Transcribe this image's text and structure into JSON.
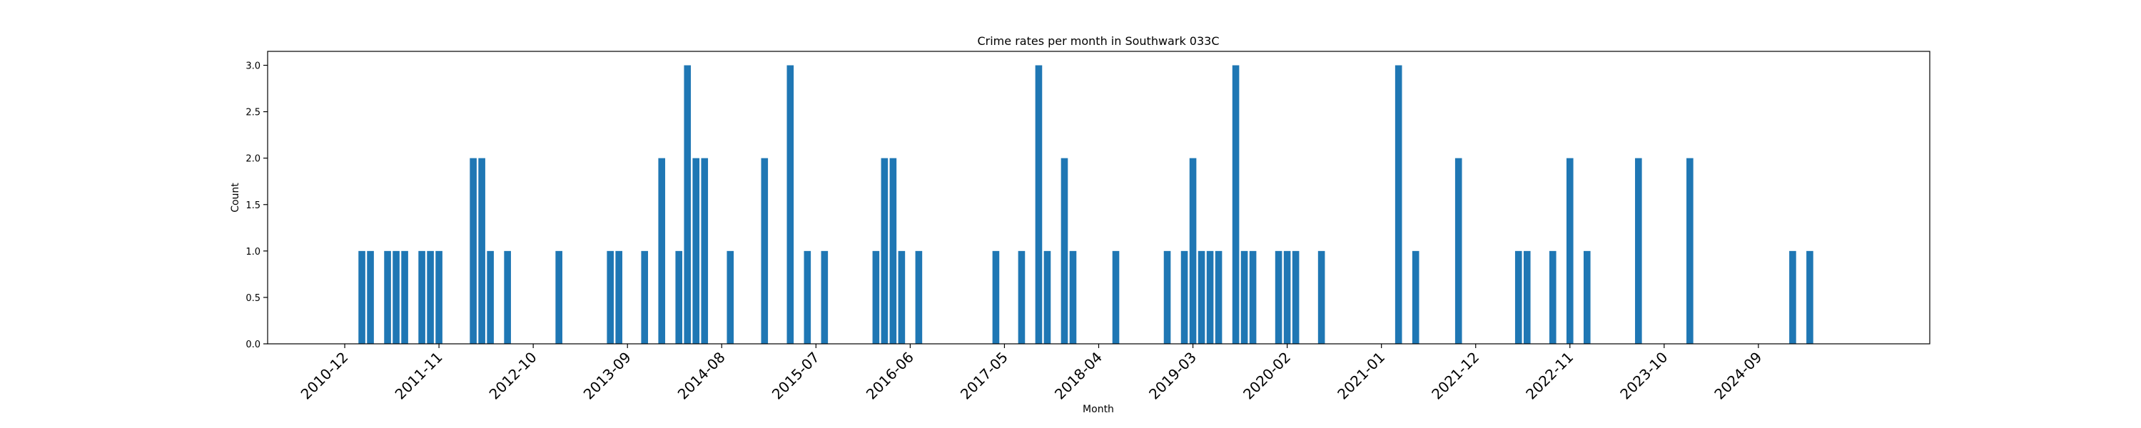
{
  "chart_data": {
    "type": "bar",
    "title": "Crime rates per month in Southwark 033C",
    "xlabel": "Month",
    "ylabel": "Count",
    "ylim": [
      0,
      3.15
    ],
    "yticks": [
      "0.0",
      "0.5",
      "1.0",
      "1.5",
      "2.0",
      "2.5",
      "3.0"
    ],
    "xlim": [
      "2010-03",
      "2026-05"
    ],
    "xticks": [
      "2010-12",
      "2011-11",
      "2012-10",
      "2013-09",
      "2014-08",
      "2015-07",
      "2016-06",
      "2017-05",
      "2018-04",
      "2019-03",
      "2020-02",
      "2021-01",
      "2021-12",
      "2022-11",
      "2023-10",
      "2024-09"
    ],
    "bar_color": "#1f77b4",
    "grid": false,
    "legend": "none",
    "x": [
      "2011-02",
      "2011-03",
      "2011-05",
      "2011-06",
      "2011-07",
      "2011-09",
      "2011-10",
      "2011-11",
      "2012-03",
      "2012-04",
      "2012-05",
      "2012-07",
      "2013-01",
      "2013-07",
      "2013-08",
      "2013-11",
      "2014-01",
      "2014-03",
      "2014-04",
      "2014-05",
      "2014-06",
      "2014-09",
      "2015-01",
      "2015-04",
      "2015-06",
      "2015-08",
      "2016-02",
      "2016-03",
      "2016-04",
      "2016-05",
      "2016-07",
      "2017-04",
      "2017-07",
      "2017-09",
      "2017-10",
      "2017-12",
      "2018-01",
      "2018-06",
      "2018-12",
      "2019-02",
      "2019-03",
      "2019-04",
      "2019-05",
      "2019-06",
      "2019-08",
      "2019-09",
      "2019-10",
      "2020-01",
      "2020-02",
      "2020-03",
      "2020-06",
      "2021-03",
      "2021-05",
      "2021-10",
      "2022-05",
      "2022-06",
      "2022-09",
      "2022-11",
      "2023-01",
      "2023-07",
      "2024-01",
      "2025-01",
      "2025-03"
    ],
    "values": [
      1,
      1,
      1,
      1,
      1,
      1,
      1,
      1,
      2,
      2,
      1,
      1,
      1,
      1,
      1,
      1,
      2,
      1,
      3,
      2,
      2,
      1,
      2,
      3,
      1,
      1,
      1,
      2,
      2,
      1,
      1,
      1,
      1,
      3,
      1,
      2,
      1,
      1,
      1,
      1,
      2,
      1,
      1,
      1,
      3,
      1,
      1,
      1,
      1,
      1,
      1,
      3,
      1,
      2,
      1,
      1,
      1,
      2,
      1,
      2,
      2,
      1,
      1
    ]
  }
}
